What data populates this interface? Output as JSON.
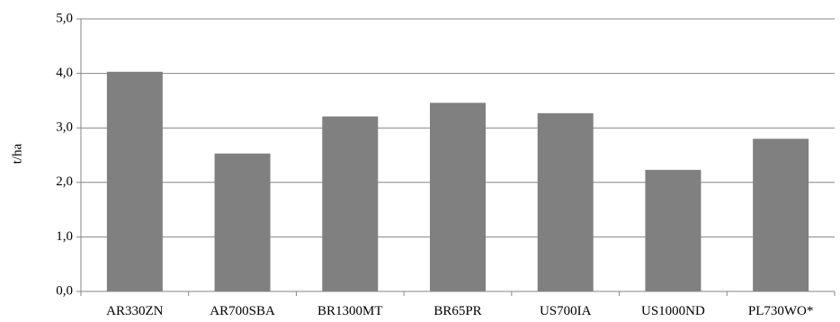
{
  "chart_data": {
    "type": "bar",
    "title": "",
    "xlabel": "",
    "ylabel": "t/ha",
    "categories": [
      "AR330ZN",
      "AR700SBA",
      "BR1300MT",
      "BR65PR",
      "US700IA",
      "US1000ND",
      "PL730WO*"
    ],
    "values": [
      4.03,
      2.53,
      3.21,
      3.46,
      3.27,
      2.23,
      2.8
    ],
    "ylim": [
      0,
      5
    ],
    "yticks": [
      "0,0",
      "1,0",
      "2,0",
      "3,0",
      "4,0",
      "5,0"
    ],
    "grid": true,
    "legend": "none",
    "colors": {
      "bar": "#808080",
      "grid": "#868686",
      "axis": "#868686"
    }
  }
}
